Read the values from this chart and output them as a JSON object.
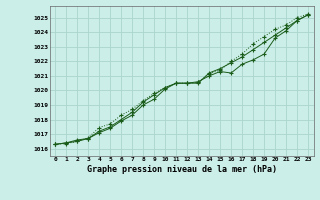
{
  "title": "Graphe pression niveau de la mer (hPa)",
  "background_color": "#cceee8",
  "grid_color": "#aad4cc",
  "line_color": "#1a5c1a",
  "xlim": [
    -0.5,
    23.5
  ],
  "ylim": [
    1015.5,
    1025.8
  ],
  "yticks": [
    1016,
    1017,
    1018,
    1019,
    1020,
    1021,
    1022,
    1023,
    1024,
    1025
  ],
  "xticks": [
    0,
    1,
    2,
    3,
    4,
    5,
    6,
    7,
    8,
    9,
    10,
    11,
    12,
    13,
    14,
    15,
    16,
    17,
    18,
    19,
    20,
    21,
    22,
    23
  ],
  "series1_x": [
    0,
    1,
    2,
    3,
    4,
    5,
    6,
    7,
    8,
    9,
    10,
    11,
    12,
    13,
    14,
    15,
    16,
    17,
    18,
    19,
    20,
    21,
    22,
    23
  ],
  "series1_y": [
    1016.3,
    1016.4,
    1016.6,
    1016.7,
    1017.1,
    1017.4,
    1017.9,
    1018.3,
    1019.0,
    1019.4,
    1020.1,
    1020.5,
    1020.5,
    1020.6,
    1021.0,
    1021.3,
    1021.2,
    1021.8,
    1022.1,
    1022.5,
    1023.6,
    1024.1,
    1024.8,
    1025.2
  ],
  "series2_x": [
    0,
    1,
    2,
    3,
    4,
    5,
    6,
    7,
    8,
    9,
    10,
    11,
    12,
    13,
    14,
    15,
    16,
    17,
    18,
    19,
    20,
    21,
    22,
    23
  ],
  "series2_y": [
    1016.3,
    1016.35,
    1016.5,
    1016.75,
    1017.45,
    1017.7,
    1018.3,
    1018.7,
    1019.3,
    1019.8,
    1020.2,
    1020.5,
    1020.5,
    1020.55,
    1021.15,
    1021.4,
    1022.0,
    1022.5,
    1023.2,
    1023.7,
    1024.2,
    1024.5,
    1025.0,
    1025.25
  ],
  "series3_x": [
    0,
    1,
    2,
    3,
    4,
    5,
    6,
    7,
    8,
    9,
    10,
    11,
    12,
    13,
    14,
    15,
    16,
    17,
    18,
    19,
    20,
    21,
    22,
    23
  ],
  "series3_y": [
    1016.3,
    1016.4,
    1016.5,
    1016.7,
    1017.2,
    1017.5,
    1018.0,
    1018.5,
    1019.2,
    1019.7,
    1020.2,
    1020.5,
    1020.5,
    1020.5,
    1021.2,
    1021.5,
    1021.9,
    1022.3,
    1022.8,
    1023.3,
    1023.8,
    1024.3,
    1024.8,
    1025.2
  ]
}
